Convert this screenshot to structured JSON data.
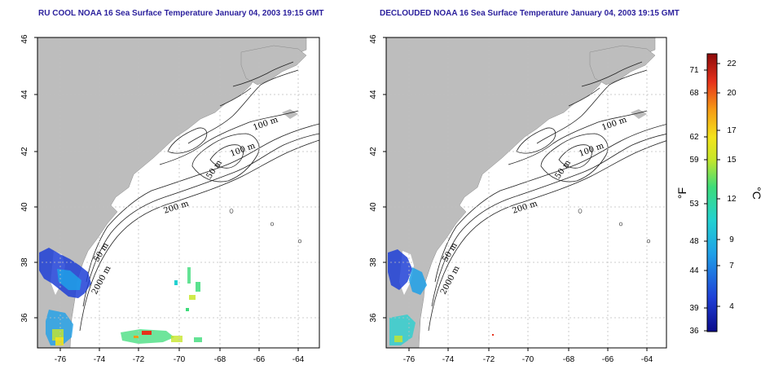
{
  "panels": [
    {
      "title": "RU COOL NOAA 16 Sea Surface Temperature January 04, 2003 19:15 GMT"
    },
    {
      "title": "DECLOUDED NOAA 16 Sea Surface Temperature January 04, 2003 19:15 GMT"
    }
  ],
  "axes": {
    "lon_ticks": [
      "-76",
      "-74",
      "-72",
      "-70",
      "-68",
      "-66",
      "-64"
    ],
    "lat_ticks": [
      "36",
      "38",
      "40",
      "42",
      "44",
      "46"
    ]
  },
  "contour_labels": [
    "100 m",
    "100 m",
    "50 m",
    "200 m",
    "50 m",
    "2000 m"
  ],
  "colorbar": {
    "f_unit": "°F",
    "c_unit": "°C",
    "f_ticks": [
      "71",
      "68",
      "62",
      "59",
      "53",
      "48",
      "44",
      "39",
      "36"
    ],
    "c_ticks": [
      "22",
      "20",
      "17",
      "15",
      "12",
      "9",
      "7",
      "4"
    ]
  },
  "colors": {
    "land": "#bdbdbd",
    "frame": "#000000",
    "title": "#2a1f9c",
    "scale": [
      "#0b0b8a",
      "#1f3fd6",
      "#1fa0e8",
      "#23d1d1",
      "#3ddc7a",
      "#c7e62a",
      "#f3e31b",
      "#f59a16",
      "#e6311b",
      "#8c0a0a"
    ]
  }
}
